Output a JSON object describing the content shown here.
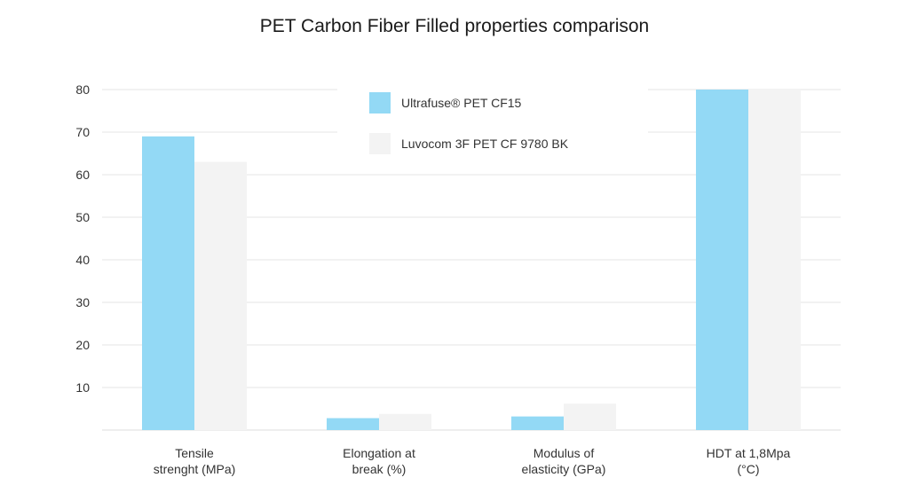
{
  "chart_data": {
    "type": "bar",
    "title": "PET Carbon Fiber Filled properties comparison",
    "xlabel": "",
    "ylabel": "",
    "categories": [
      [
        "Tensile",
        "strenght (MPa)"
      ],
      [
        "Elongation at",
        "break (%)"
      ],
      [
        "Modulus of",
        "elasticity (GPa)"
      ],
      [
        "HDT at 1,8Mpa",
        "(°C)"
      ]
    ],
    "series": [
      {
        "name": "Ultrafuse® PET CF15",
        "color": "#93d9f5",
        "values": [
          69,
          2.8,
          3.2,
          80
        ]
      },
      {
        "name": "Luvocom 3F PET CF 9780 BK",
        "color": "#f3f3f3",
        "values": [
          63,
          3.8,
          6.2,
          80
        ]
      }
    ],
    "ylim": [
      0,
      80
    ],
    "yticks": [
      10,
      20,
      30,
      40,
      50,
      60,
      70,
      80
    ],
    "grid": true,
    "legend_position": "top-center"
  }
}
